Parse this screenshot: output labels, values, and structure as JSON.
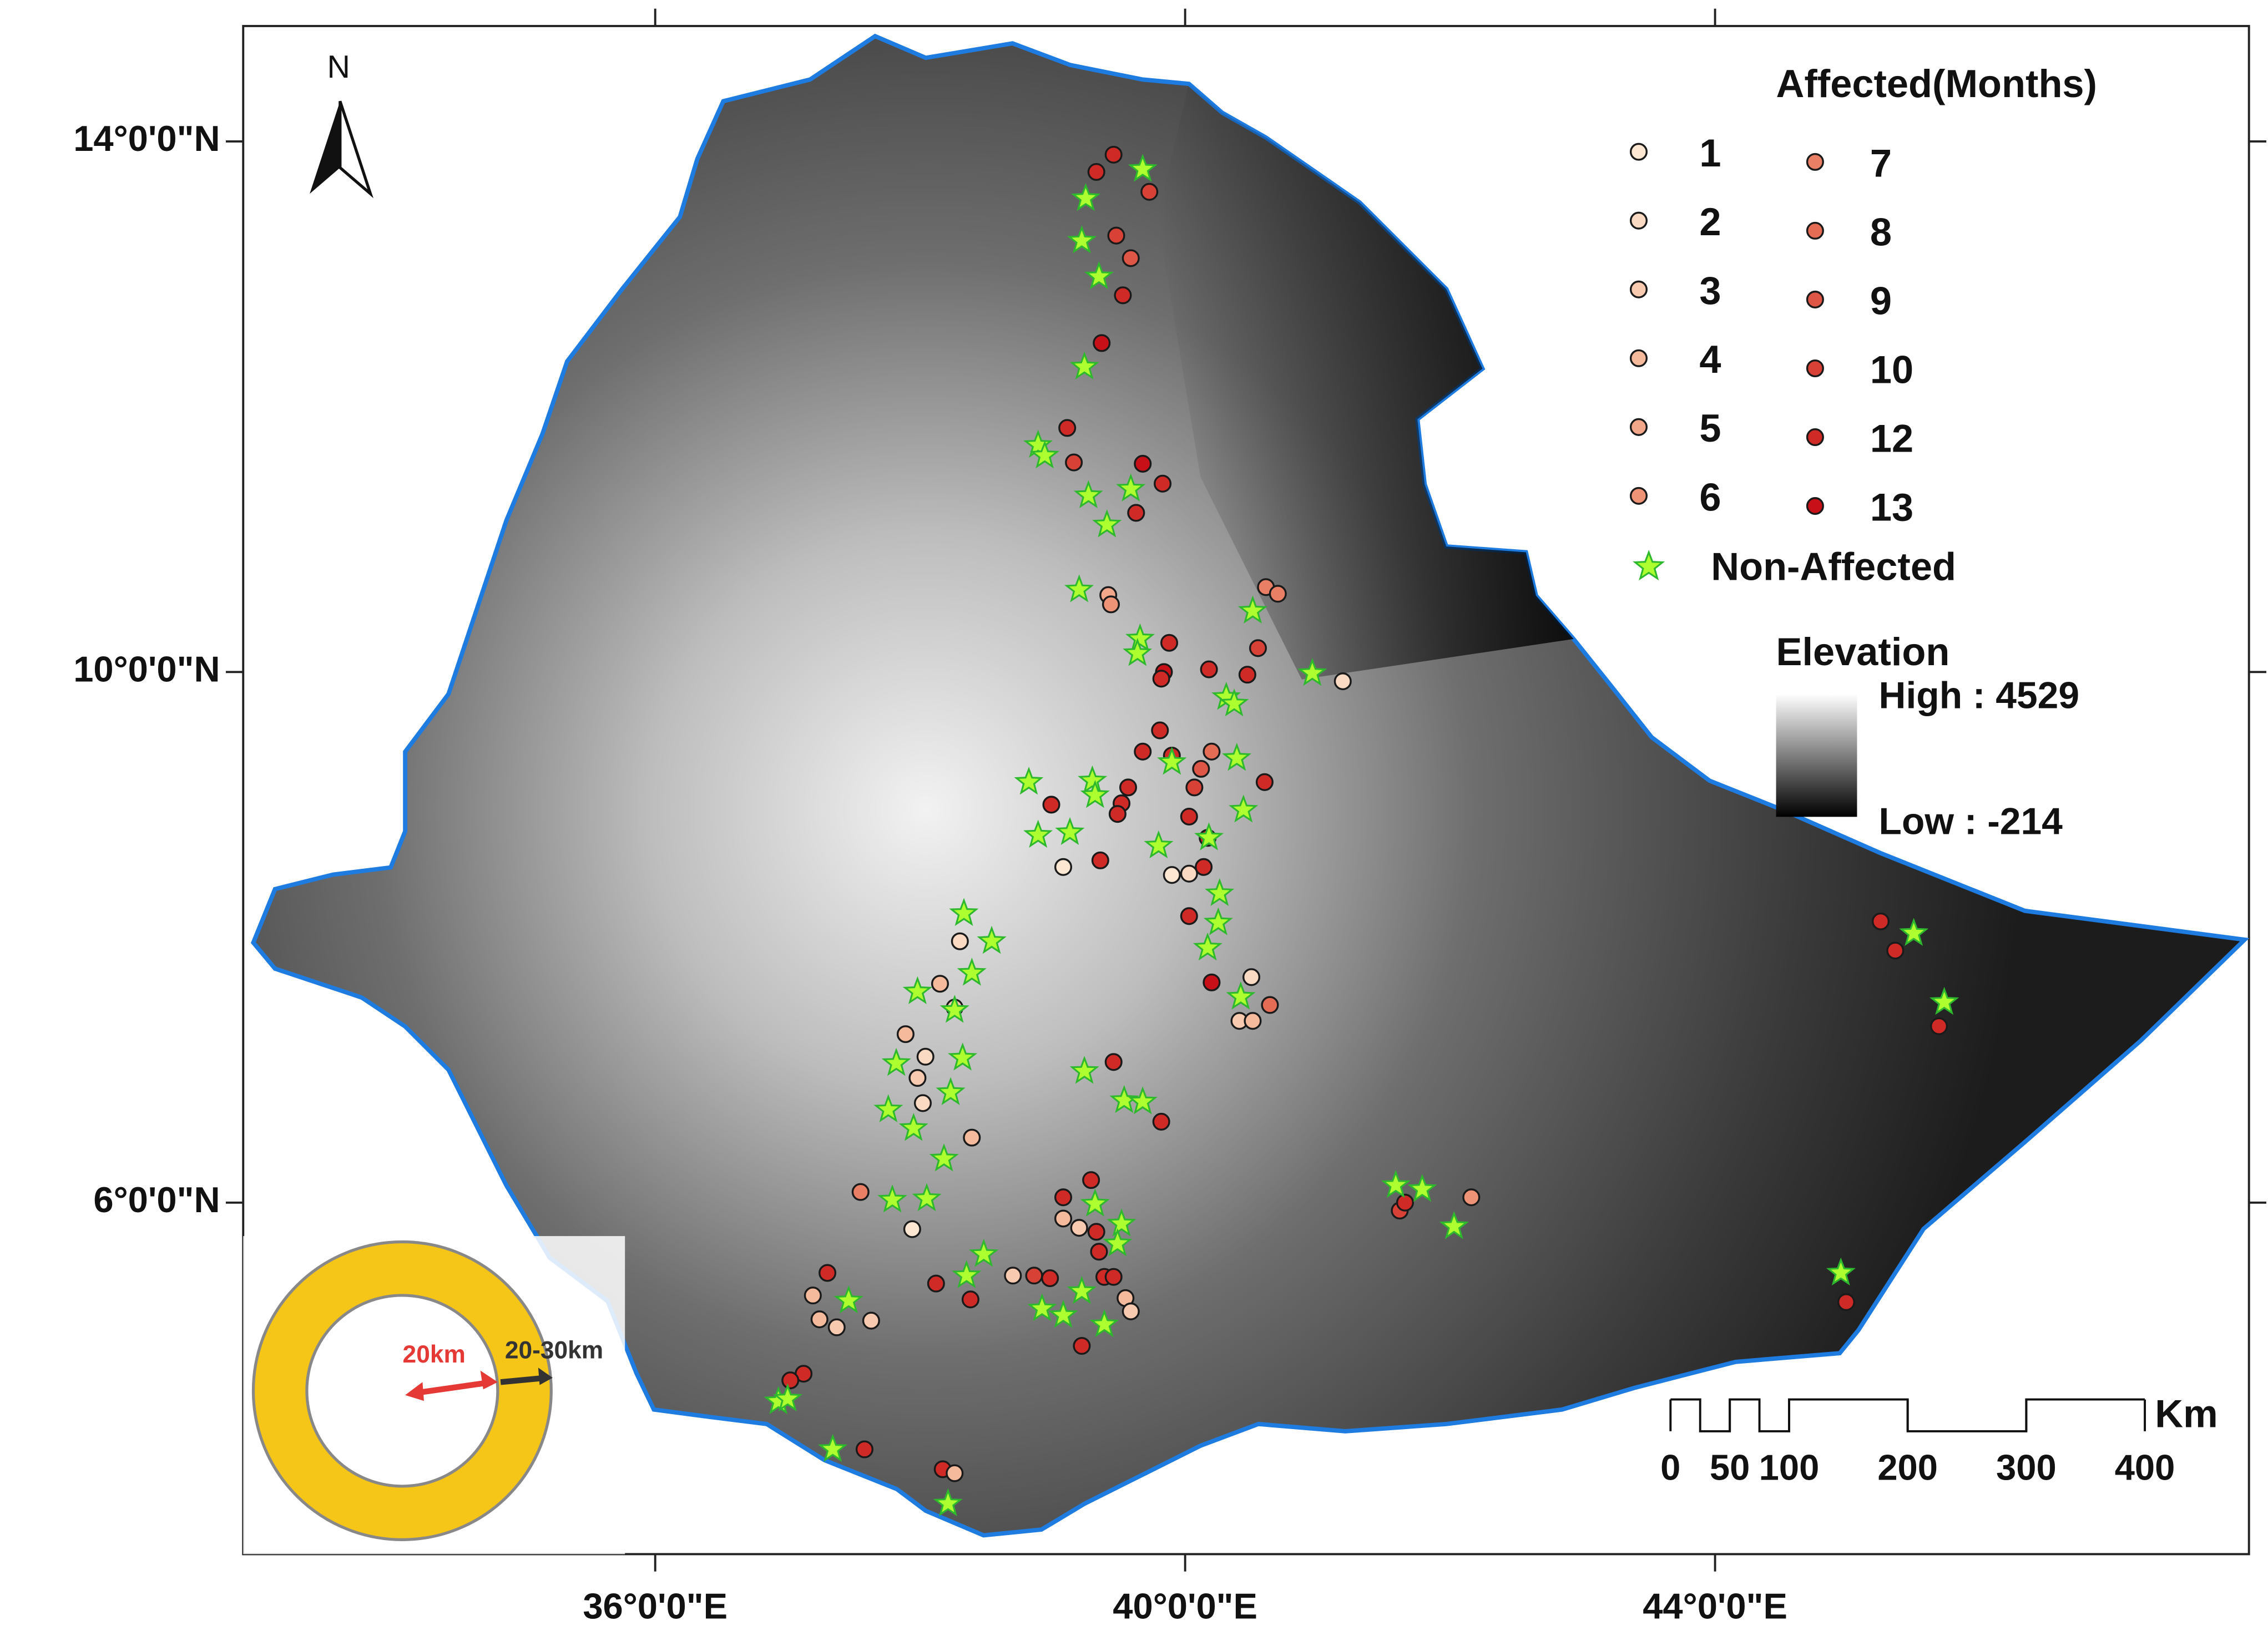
{
  "map": {
    "type": "point-map",
    "north": "N",
    "xlim": [
      32.89,
      48.03
    ],
    "ylim": [
      3.35,
      14.87
    ],
    "xticks": [
      {
        "value": 36,
        "label": "36°0'0\"E"
      },
      {
        "value": 40,
        "label": "40°0'0\"E"
      },
      {
        "value": 44,
        "label": "44°0'0\"E"
      }
    ],
    "yticks": [
      {
        "value": 14,
        "label": "14°0'0\"N"
      },
      {
        "value": 10,
        "label": "10°0'0\"N"
      },
      {
        "value": 6,
        "label": "6°0'0\"N"
      }
    ],
    "legend": {
      "title": "Affected(Months)",
      "classes": [
        {
          "months": 1,
          "color": "#fde6d2"
        },
        {
          "months": 2,
          "color": "#fbdac4"
        },
        {
          "months": 3,
          "color": "#f8cbb0"
        },
        {
          "months": 4,
          "color": "#f5b99c"
        },
        {
          "months": 5,
          "color": "#f2a68a"
        },
        {
          "months": 6,
          "color": "#ee9376"
        },
        {
          "months": 7,
          "color": "#e98066"
        },
        {
          "months": 8,
          "color": "#e46c55"
        },
        {
          "months": 9,
          "color": "#de5746"
        },
        {
          "months": 10,
          "color": "#d84236"
        },
        {
          "months": 12,
          "color": "#d02a26"
        },
        {
          "months": 13,
          "color": "#c81018"
        }
      ],
      "non_affected": {
        "label": "Non-Affected",
        "color": "#adff2f"
      }
    },
    "elevation": {
      "title": "Elevation",
      "high": {
        "value": 4529,
        "label": "High : 4529"
      },
      "low": {
        "value": -214,
        "label": "Low : -214"
      }
    },
    "scale_bar": {
      "unit": "Km",
      "ticks": [
        0,
        50,
        100,
        200,
        300,
        400
      ]
    },
    "inset": {
      "inner_label": "20km",
      "ring_label": "20-30km"
    },
    "affected": {
      "lon": [
        39.46,
        39.33,
        39.73,
        39.48,
        39.59,
        39.53,
        39.37,
        39.11,
        39.16,
        39.68,
        39.83,
        39.63,
        39.42,
        39.44,
        39.88,
        39.84,
        39.82,
        40.18,
        40.47,
        40.55,
        40.61,
        40.7,
        41.19,
        39.81,
        39.9,
        39.68,
        40.2,
        40.12,
        40.07,
        40.6,
        39.57,
        39.52,
        39.49,
        38.99,
        39.36,
        39.08,
        40.03,
        40.17,
        39.9,
        40.03,
        40.14,
        40.03,
        40.2,
        40.5,
        40.64,
        40.41,
        40.51,
        38.3,
        38.15,
        38.26,
        37.89,
        38.04,
        37.98,
        38.02,
        38.39,
        37.55,
        37.94,
        39.29,
        39.08,
        39.08,
        39.2,
        39.33,
        39.35,
        39.82,
        39.46,
        39.39,
        39.46,
        39.55,
        39.59,
        38.7,
        38.86,
        38.98,
        38.12,
        38.38,
        39.22,
        37.19,
        37.3,
        37.24,
        37.37,
        37.63,
        37.12,
        37.02,
        37.58,
        38.17,
        38.26,
        41.62,
        41.66,
        42.16,
        45.25,
        45.36,
        45.69,
        44.99
      ],
      "lat": [
        13.9,
        13.77,
        13.62,
        13.29,
        13.12,
        12.84,
        12.48,
        11.84,
        11.58,
        11.57,
        11.42,
        11.2,
        10.58,
        10.51,
        10.22,
        10.0,
        9.95,
        10.02,
        9.98,
        10.18,
        10.64,
        10.59,
        9.93,
        9.56,
        9.37,
        9.4,
        9.4,
        9.27,
        9.13,
        9.17,
        9.13,
        9.01,
        8.93,
        9.0,
        8.58,
        8.53,
        8.91,
        8.75,
        8.47,
        8.48,
        8.53,
        8.16,
        7.66,
        7.7,
        7.49,
        7.37,
        7.37,
        7.97,
        7.65,
        7.47,
        7.27,
        7.1,
        6.94,
        6.75,
        6.49,
        6.08,
        5.8,
        6.17,
        6.04,
        5.88,
        5.81,
        5.78,
        5.63,
        6.61,
        7.06,
        5.44,
        5.44,
        5.28,
        5.18,
        5.45,
        5.45,
        5.43,
        5.39,
        5.27,
        4.92,
        5.3,
        5.47,
        5.12,
        5.06,
        5.11,
        4.71,
        4.66,
        4.14,
        3.99,
        3.96,
        5.94,
        6.0,
        6.04,
        8.12,
        7.9,
        7.33,
        5.25
      ],
      "months": [
        12,
        12,
        10,
        10,
        9,
        12,
        13,
        12,
        10,
        13,
        12,
        12,
        5,
        6,
        12,
        13,
        12,
        12,
        12,
        10,
        7,
        7,
        2,
        12,
        12,
        12,
        8,
        9,
        10,
        12,
        12,
        12,
        12,
        12,
        12,
        1,
        12,
        12,
        1,
        2,
        12,
        12,
        13,
        2,
        8,
        3,
        4,
        2,
        4,
        3,
        4,
        2,
        3,
        2,
        4,
        7,
        1,
        12,
        12,
        4,
        3,
        12,
        12,
        12,
        12,
        12,
        12,
        4,
        3,
        3,
        10,
        12,
        12,
        12,
        12,
        4,
        12,
        4,
        3,
        3,
        12,
        12,
        12,
        12,
        4,
        10,
        12,
        6,
        12,
        12,
        12,
        12
      ]
    },
    "non_affected": {
      "lon": [
        39.68,
        39.25,
        39.22,
        39.35,
        39.24,
        38.89,
        38.94,
        39.59,
        39.27,
        39.41,
        39.2,
        39.66,
        39.64,
        40.51,
        40.96,
        40.31,
        40.37,
        39.9,
        40.39,
        39.3,
        39.32,
        38.82,
        40.44,
        38.89,
        39.13,
        39.8,
        40.18,
        40.26,
        40.25,
        40.17,
        38.33,
        38.54,
        38.39,
        37.98,
        38.26,
        38.32,
        37.82,
        38.23,
        37.76,
        37.95,
        38.18,
        39.24,
        39.54,
        39.68,
        39.32,
        39.52,
        39.49,
        37.79,
        38.05,
        38.48,
        38.35,
        37.46,
        38.92,
        39.08,
        39.22,
        39.39,
        36.93,
        37.0,
        37.34,
        38.21,
        40.42,
        41.59,
        41.79,
        42.03,
        45.5,
        45.73,
        44.95
      ],
      "lat": [
        13.79,
        13.57,
        13.25,
        12.98,
        12.3,
        11.71,
        11.63,
        11.38,
        11.33,
        11.11,
        10.62,
        10.25,
        10.14,
        10.46,
        9.99,
        9.81,
        9.76,
        9.32,
        9.35,
        9.18,
        9.07,
        9.17,
        8.96,
        8.77,
        8.79,
        8.69,
        8.75,
        8.33,
        8.11,
        7.92,
        8.18,
        7.97,
        7.73,
        7.59,
        7.45,
        7.09,
        7.05,
        6.83,
        6.7,
        6.56,
        6.33,
        6.99,
        6.77,
        6.76,
        5.99,
        5.84,
        5.69,
        6.02,
        6.03,
        5.61,
        5.45,
        5.26,
        5.2,
        5.15,
        5.33,
        5.08,
        4.5,
        4.52,
        4.14,
        3.73,
        7.55,
        6.13,
        6.1,
        5.82,
        8.03,
        7.51,
        5.47
      ]
    }
  }
}
